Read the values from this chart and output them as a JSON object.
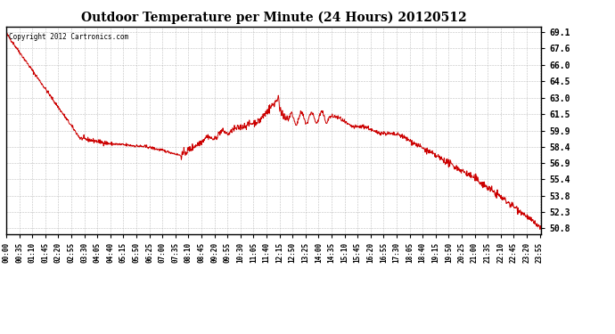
{
  "title": "Outdoor Temperature per Minute (24 Hours) 20120512",
  "copyright_text": "Copyright 2012 Cartronics.com",
  "line_color": "#cc0000",
  "background_color": "#ffffff",
  "grid_color": "#b0b0b0",
  "yticks": [
    50.8,
    52.3,
    53.8,
    55.4,
    56.9,
    58.4,
    59.9,
    61.5,
    63.0,
    64.5,
    66.0,
    67.6,
    69.1
  ],
  "ylim": [
    50.3,
    69.6
  ],
  "total_minutes": 1440,
  "xtick_positions": [
    0,
    35,
    70,
    105,
    140,
    175,
    210,
    245,
    280,
    315,
    350,
    385,
    420,
    455,
    490,
    525,
    560,
    595,
    630,
    665,
    700,
    735,
    770,
    805,
    840,
    875,
    910,
    945,
    980,
    1015,
    1050,
    1085,
    1120,
    1155,
    1190,
    1225,
    1260,
    1295,
    1330,
    1365,
    1400,
    1435
  ],
  "xtick_labels": [
    "00:00",
    "00:35",
    "01:10",
    "01:45",
    "02:20",
    "02:55",
    "03:30",
    "04:05",
    "04:40",
    "05:15",
    "05:50",
    "06:25",
    "07:00",
    "07:35",
    "08:10",
    "08:45",
    "09:20",
    "09:55",
    "10:30",
    "11:05",
    "11:40",
    "12:15",
    "12:50",
    "13:25",
    "14:00",
    "14:35",
    "15:10",
    "15:45",
    "16:20",
    "16:55",
    "17:30",
    "18:05",
    "18:40",
    "19:15",
    "19:50",
    "20:25",
    "21:00",
    "21:35",
    "22:10",
    "22:45",
    "23:20",
    "23:55"
  ],
  "figwidth": 6.9,
  "figheight": 3.75,
  "dpi": 100
}
